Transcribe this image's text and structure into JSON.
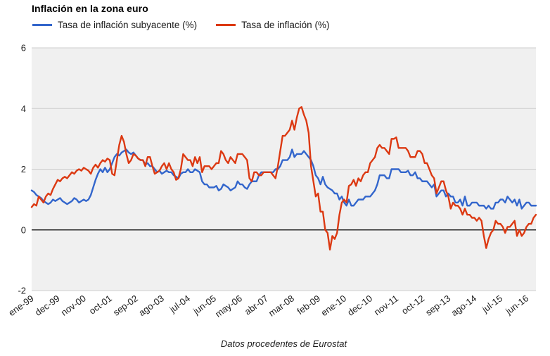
{
  "header": {
    "title": "Inflación en la zona euro"
  },
  "legend": [
    {
      "label": "Tasa de inflación subyacente (%)",
      "color": "#3366cc"
    },
    {
      "label": "Tasa de inflación (%)",
      "color": "#dc3912"
    }
  ],
  "caption": "Datos procedentes de Eurostat",
  "chart_data": {
    "type": "line",
    "title": "Inflación en la zona euro",
    "xlabel": "",
    "ylabel": "",
    "ylim": [
      -2,
      6
    ],
    "y_ticks": [
      -2,
      0,
      2,
      4,
      6
    ],
    "x_tick_labels": [
      "ene-99",
      "dec-99",
      "nov-00",
      "oct-01",
      "sep-02",
      "ago-03",
      "jul-04",
      "jun-05",
      "may-06",
      "abr-07",
      "mar-08",
      "feb-09",
      "ene-10",
      "dec-10",
      "nov-11",
      "oct-12",
      "sep-13",
      "ago-14",
      "jul-15",
      "jun-16"
    ],
    "x_tick_every": 11,
    "grid": true,
    "legend_position": "top-left",
    "plot_background": "#f0f0f0",
    "gridline_color": "#cccccc",
    "zero_line_color": "#2b2b2b",
    "series": [
      {
        "name": "Tasa de inflación subyacente (%)",
        "color": "#3366cc",
        "values": [
          1.3,
          1.25,
          1.15,
          1.1,
          1.05,
          0.95,
          0.9,
          0.85,
          0.9,
          1.0,
          0.95,
          1.0,
          1.05,
          0.95,
          0.9,
          0.85,
          0.9,
          0.95,
          1.05,
          1.0,
          0.9,
          0.95,
          1.0,
          0.95,
          1.0,
          1.15,
          1.4,
          1.65,
          1.85,
          2.0,
          1.9,
          2.05,
          1.9,
          2.0,
          2.2,
          2.4,
          2.5,
          2.45,
          2.55,
          2.6,
          2.65,
          2.55,
          2.5,
          2.55,
          2.45,
          2.35,
          2.3,
          2.3,
          2.15,
          2.2,
          2.1,
          2.1,
          2.0,
          1.9,
          1.95,
          1.85,
          1.9,
          1.95,
          1.9,
          1.9,
          1.8,
          1.75,
          1.7,
          1.85,
          1.9,
          1.9,
          2.0,
          1.9,
          1.9,
          2.0,
          1.95,
          1.9,
          1.6,
          1.5,
          1.5,
          1.4,
          1.4,
          1.4,
          1.45,
          1.3,
          1.35,
          1.5,
          1.45,
          1.4,
          1.3,
          1.35,
          1.4,
          1.6,
          1.5,
          1.5,
          1.4,
          1.35,
          1.5,
          1.6,
          1.6,
          1.6,
          1.8,
          1.9,
          1.9,
          1.9,
          1.9,
          1.9,
          1.9,
          2.0,
          2.0,
          2.1,
          2.3,
          2.3,
          2.3,
          2.4,
          2.65,
          2.4,
          2.5,
          2.5,
          2.5,
          2.6,
          2.5,
          2.4,
          2.3,
          2.1,
          1.8,
          1.7,
          1.5,
          1.75,
          1.5,
          1.4,
          1.35,
          1.3,
          1.2,
          1.2,
          1.0,
          1.1,
          0.9,
          0.8,
          1.0,
          0.8,
          0.8,
          0.9,
          1.0,
          1.0,
          1.0,
          1.1,
          1.1,
          1.1,
          1.2,
          1.3,
          1.5,
          1.8,
          1.8,
          1.8,
          1.7,
          1.7,
          2.0,
          2.0,
          2.0,
          2.0,
          1.9,
          1.9,
          1.9,
          1.95,
          1.8,
          1.8,
          1.9,
          1.7,
          1.7,
          1.6,
          1.6,
          1.6,
          1.5,
          1.4,
          1.5,
          1.1,
          1.2,
          1.3,
          1.3,
          1.1,
          1.2,
          1.1,
          1.1,
          0.9,
          0.9,
          1.0,
          0.8,
          1.1,
          0.8,
          0.8,
          0.9,
          0.9,
          0.9,
          0.8,
          0.8,
          0.8,
          0.7,
          0.8,
          0.7,
          0.7,
          0.9,
          0.9,
          1.0,
          1.0,
          0.9,
          1.1,
          1.0,
          0.9,
          1.0,
          0.8,
          1.0,
          0.7,
          0.8,
          0.9,
          0.9,
          0.8,
          0.8,
          0.8
        ]
      },
      {
        "name": "Tasa de inflación (%)",
        "color": "#dc3912",
        "values": [
          0.75,
          0.85,
          0.8,
          1.1,
          1.0,
          0.9,
          1.1,
          1.2,
          1.15,
          1.35,
          1.5,
          1.65,
          1.6,
          1.7,
          1.75,
          1.7,
          1.8,
          1.9,
          1.85,
          1.95,
          2.0,
          1.95,
          2.05,
          2.0,
          1.95,
          1.85,
          2.05,
          2.15,
          2.05,
          2.2,
          2.3,
          2.25,
          2.35,
          2.3,
          1.85,
          1.8,
          2.3,
          2.8,
          3.1,
          2.9,
          2.5,
          2.2,
          2.3,
          2.5,
          2.45,
          2.35,
          2.3,
          2.3,
          2.1,
          2.4,
          2.4,
          2.1,
          1.85,
          1.9,
          1.95,
          2.1,
          2.2,
          2.0,
          2.2,
          2.0,
          1.9,
          1.65,
          1.7,
          2.0,
          2.5,
          2.4,
          2.3,
          2.3,
          2.1,
          2.4,
          2.2,
          2.4,
          1.9,
          2.1,
          2.1,
          2.1,
          2.0,
          2.1,
          2.2,
          2.2,
          2.6,
          2.5,
          2.3,
          2.2,
          2.4,
          2.3,
          2.2,
          2.5,
          2.5,
          2.5,
          2.4,
          2.3,
          1.7,
          1.6,
          1.9,
          1.9,
          1.8,
          1.8,
          1.9,
          1.9,
          1.9,
          1.9,
          1.8,
          1.7,
          2.1,
          2.6,
          3.1,
          3.1,
          3.2,
          3.3,
          3.6,
          3.3,
          3.7,
          4.0,
          4.05,
          3.8,
          3.6,
          3.2,
          2.1,
          1.6,
          1.1,
          1.2,
          0.6,
          0.6,
          0.0,
          -0.1,
          -0.65,
          -0.2,
          -0.3,
          -0.1,
          0.5,
          0.9,
          1.0,
          0.9,
          1.45,
          1.5,
          1.65,
          1.45,
          1.7,
          1.6,
          1.8,
          1.9,
          1.9,
          2.2,
          2.3,
          2.4,
          2.7,
          2.8,
          2.7,
          2.7,
          2.6,
          2.5,
          3.0,
          3.0,
          3.05,
          2.7,
          2.7,
          2.7,
          2.7,
          2.6,
          2.4,
          2.4,
          2.4,
          2.6,
          2.6,
          2.5,
          2.2,
          2.2,
          2.0,
          1.8,
          1.7,
          1.2,
          1.4,
          1.6,
          1.6,
          1.3,
          1.1,
          0.7,
          0.9,
          0.8,
          0.8,
          0.7,
          0.5,
          0.7,
          0.5,
          0.5,
          0.4,
          0.4,
          0.3,
          0.4,
          0.3,
          -0.2,
          -0.6,
          -0.3,
          -0.1,
          0.0,
          0.3,
          0.2,
          0.2,
          0.1,
          -0.1,
          0.1,
          0.1,
          0.2,
          0.3,
          -0.2,
          0.0,
          -0.2,
          -0.1,
          0.1,
          0.2,
          0.2,
          0.4,
          0.5
        ]
      }
    ]
  }
}
